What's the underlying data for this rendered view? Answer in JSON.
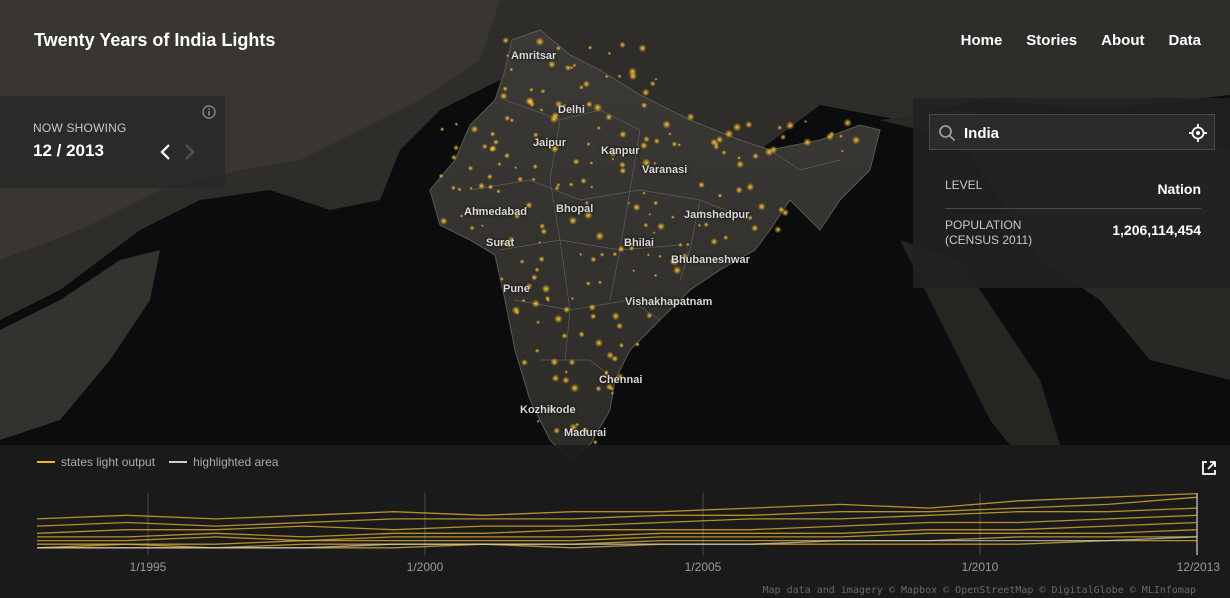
{
  "app": {
    "title": "Twenty Years of India Lights",
    "nav": [
      "Home",
      "Stories",
      "About",
      "Data"
    ]
  },
  "now_showing": {
    "label": "NOW SHOWING",
    "date": "12 / 2013"
  },
  "search": {
    "value": "India",
    "placeholder": ""
  },
  "details": {
    "level_label": "LEVEL",
    "level_value": "Nation",
    "population_label_1": "POPULATION",
    "population_label_2": "(CENSUS 2011)",
    "population_value": "1,206,114,454"
  },
  "map": {
    "cities": [
      {
        "name": "Amritsar"
      },
      {
        "name": "Delhi"
      },
      {
        "name": "Jaipur"
      },
      {
        "name": "Kanpur"
      },
      {
        "name": "Varanasi"
      },
      {
        "name": "Ahmedabad"
      },
      {
        "name": "Bhopal"
      },
      {
        "name": "Jamshedpur"
      },
      {
        "name": "Surat"
      },
      {
        "name": "Bhilai"
      },
      {
        "name": "Bhubaneshwar"
      },
      {
        "name": "Pune"
      },
      {
        "name": "Vishakhapatnam"
      },
      {
        "name": "Chennai"
      },
      {
        "name": "Kozhikode"
      },
      {
        "name": "Madurai"
      }
    ],
    "attribution": "Map data and imagery © Mapbox © OpenStreetMap © DigitalGlobe © MLInfomap"
  },
  "chart_data": {
    "type": "line",
    "legend": [
      {
        "label": "states light output",
        "color": "#e8b830"
      },
      {
        "label": "highlighted area",
        "color": "#cfcfcf"
      }
    ],
    "x_ticks": [
      "1/1995",
      "1/2000",
      "1/2005",
      "1/2010",
      "12/2013"
    ],
    "series": [
      {
        "color": "#e8b830",
        "values": [
          10,
          11,
          10,
          11,
          12,
          11,
          12,
          12,
          13,
          14,
          13,
          15,
          16,
          17
        ]
      },
      {
        "color": "#e8b830",
        "values": [
          8,
          9,
          8,
          9,
          10,
          10,
          10,
          11,
          11,
          12,
          12,
          13,
          14,
          16
        ]
      },
      {
        "color": "#e8b830",
        "values": [
          6,
          7,
          7,
          8,
          7,
          8,
          8,
          9,
          10,
          10,
          11,
          12,
          12,
          13
        ]
      },
      {
        "color": "#e8b830",
        "values": [
          5,
          5,
          6,
          5,
          6,
          6,
          7,
          7,
          7,
          8,
          9,
          9,
          10,
          11
        ]
      },
      {
        "color": "#e8b830",
        "values": [
          4,
          4,
          5,
          4,
          5,
          5,
          5,
          6,
          6,
          6,
          7,
          7,
          8,
          9
        ]
      },
      {
        "color": "#e8b830",
        "values": [
          3,
          3,
          3,
          4,
          4,
          4,
          4,
          5,
          5,
          5,
          6,
          6,
          6,
          7
        ]
      },
      {
        "color": "#e8b830",
        "values": [
          2,
          3,
          2,
          3,
          3,
          3,
          3,
          4,
          4,
          4,
          4,
          5,
          5,
          5
        ]
      },
      {
        "color": "#e8b830",
        "values": [
          2,
          2,
          2,
          2,
          2,
          3,
          2,
          3,
          3,
          3,
          3,
          3,
          4,
          4
        ]
      },
      {
        "color": "#cfcfcf",
        "values": [
          2,
          2,
          2,
          2,
          3,
          3,
          3,
          3,
          3,
          4,
          4,
          4,
          4,
          5
        ]
      }
    ]
  }
}
